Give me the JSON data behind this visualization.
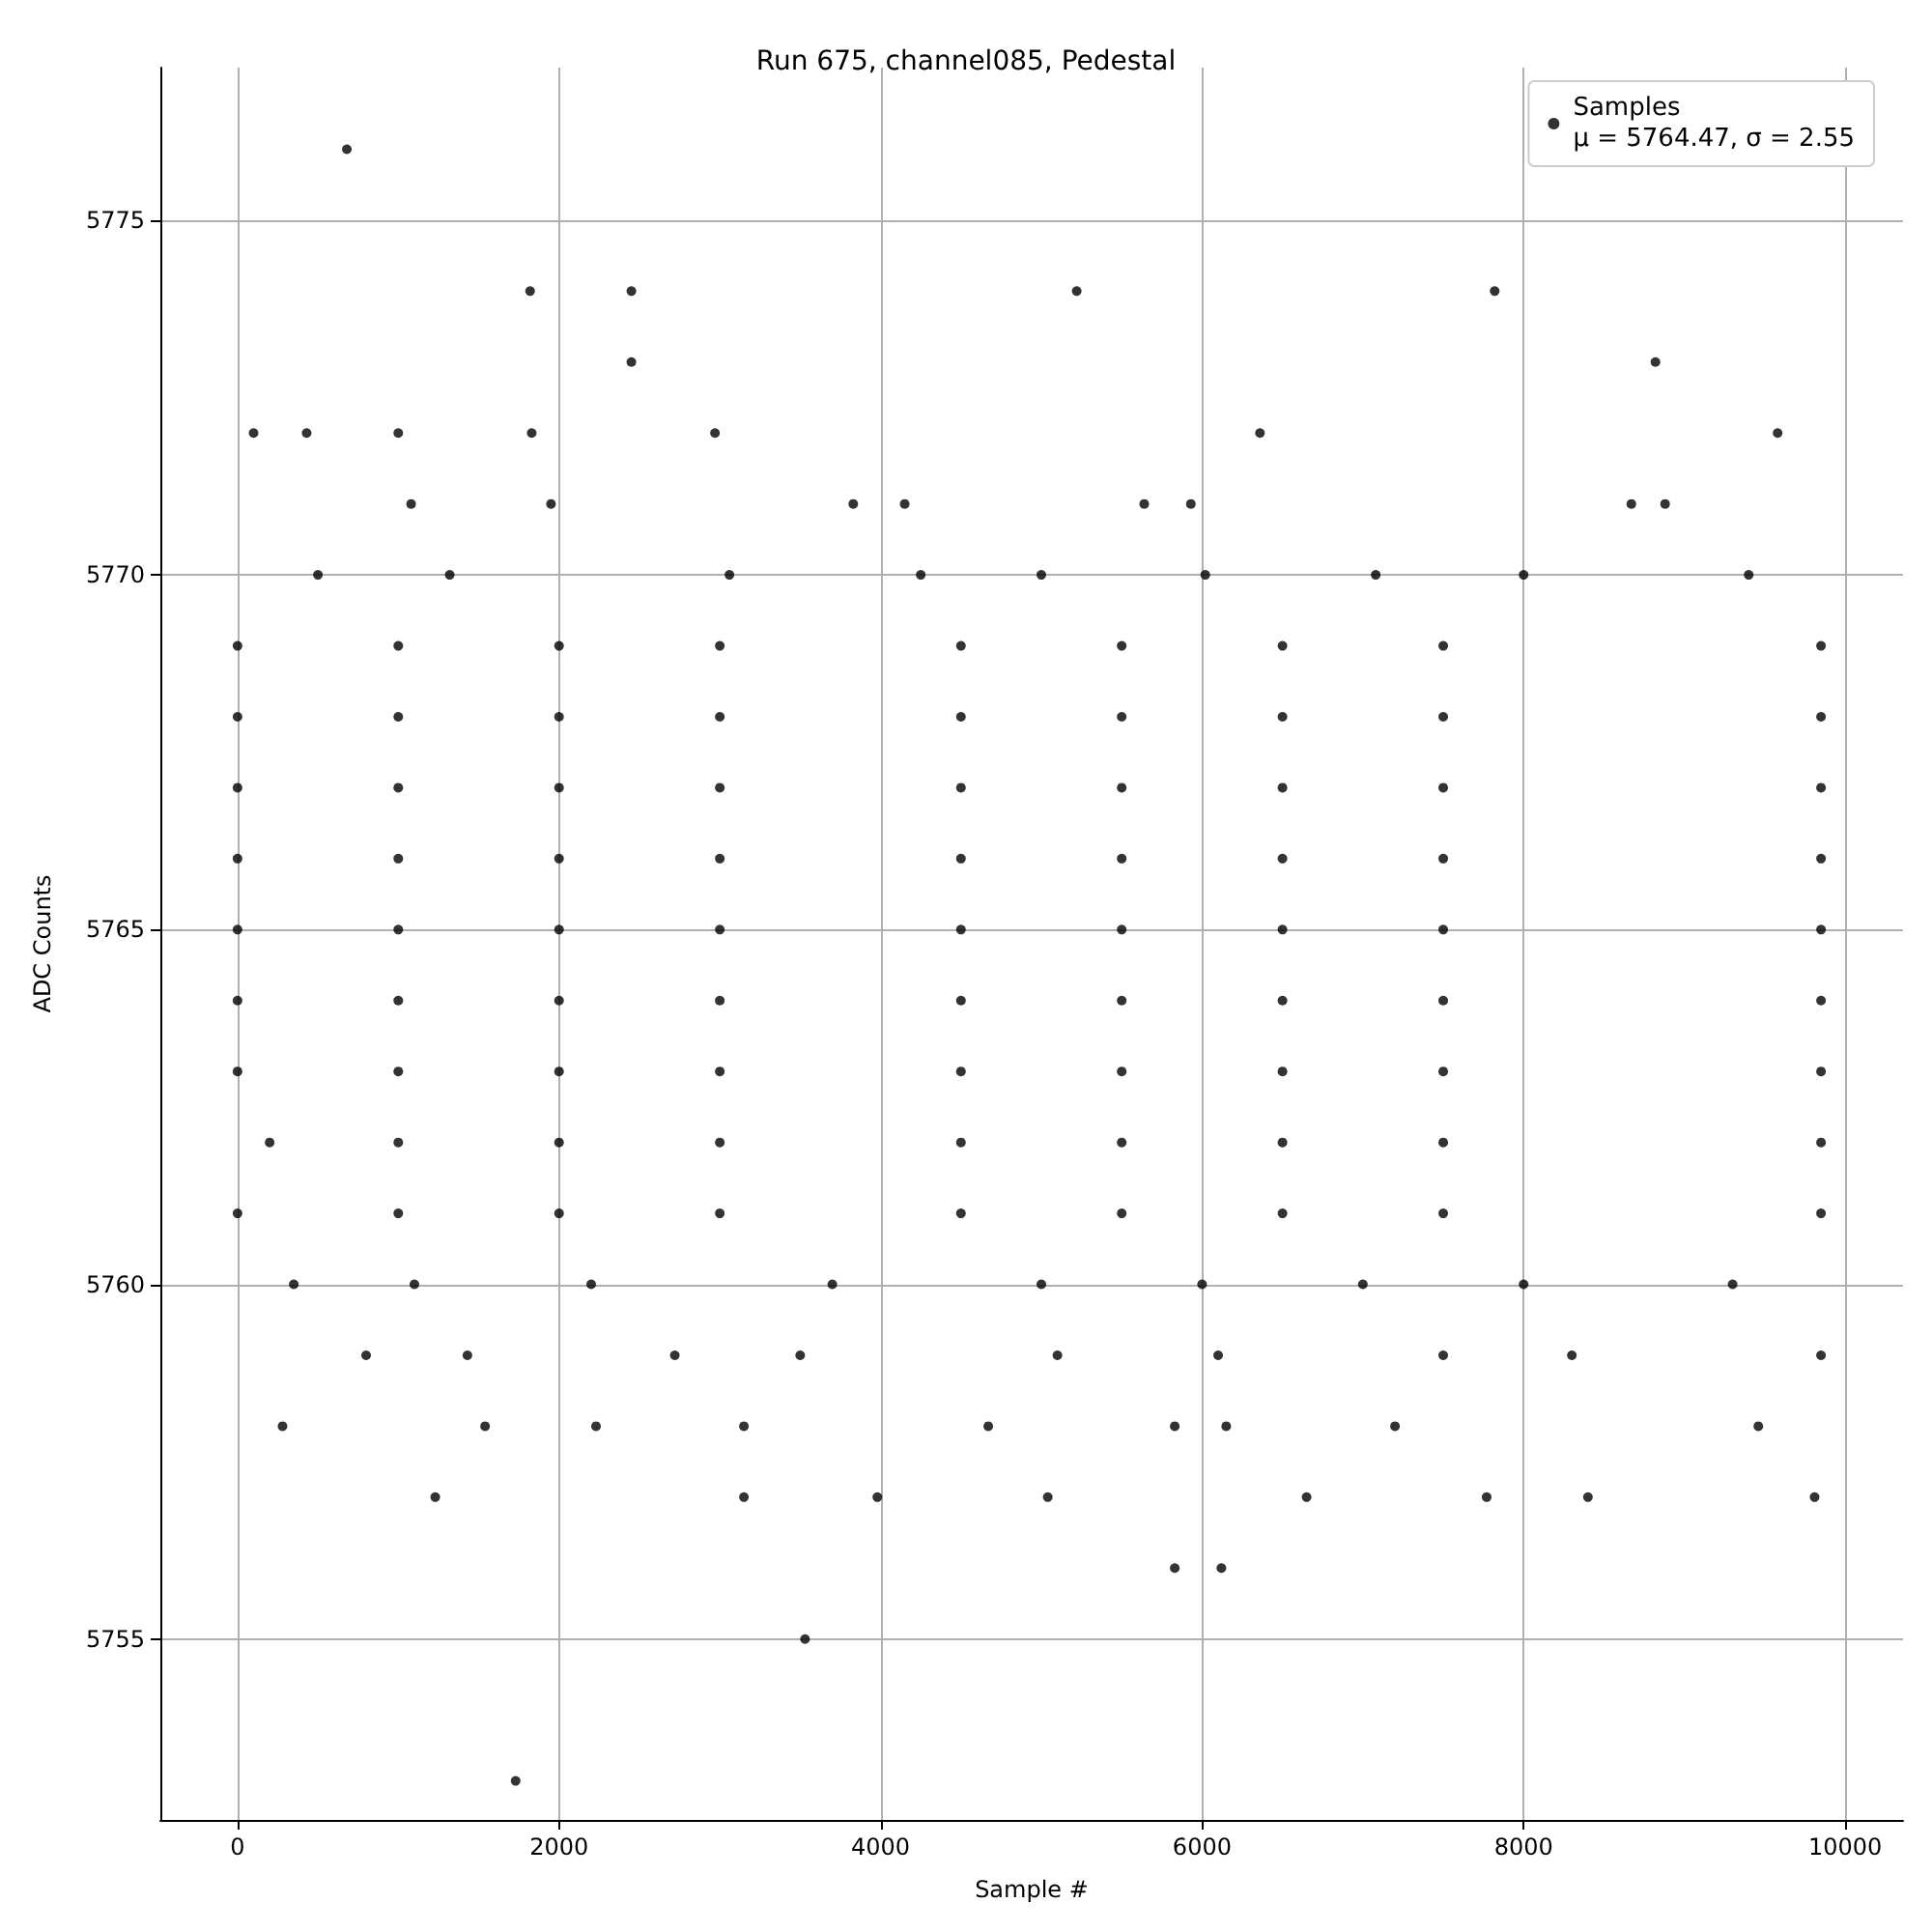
{
  "chart_data": {
    "type": "scatter",
    "title": "Run 675, channel085, Pedestal",
    "xlabel": "Sample #",
    "ylabel": "ADC Counts",
    "annotations": [
      "μ = 5764.47, σ = 2.55"
    ],
    "series": [
      {
        "name": "Samples",
        "color": "#000000",
        "x": [
          0,
          1000,
          2000,
          3000,
          4500,
          5500,
          6500,
          7500,
          9850,
          0,
          1000,
          2000,
          3000,
          4500,
          5500,
          6500,
          7500,
          9850,
          0,
          1000,
          2000,
          3000,
          4500,
          5500,
          6500,
          7500,
          9850,
          0,
          1000,
          2000,
          3000,
          4500,
          5500,
          6500,
          7500,
          9850,
          0,
          1000,
          2000,
          3000,
          4500,
          5500,
          6500,
          7500,
          9850,
          0,
          1000,
          2000,
          3000,
          4500,
          5500,
          6500,
          7500,
          9850,
          0,
          1000,
          2000,
          3000,
          4500,
          5500,
          6500,
          7500,
          9850,
          200,
          1000,
          2000,
          3000,
          4500,
          5500,
          6500,
          7500,
          9850,
          0,
          1000,
          2000,
          3000,
          4500,
          5500,
          6500,
          7500,
          9850,
          680,
          1820,
          2450,
          5220,
          7820,
          2450,
          8820,
          100,
          430,
          1000,
          1830,
          2970,
          6360,
          9580,
          1080,
          1950,
          3830,
          4150,
          5640,
          5930,
          8670,
          8880,
          500,
          1320,
          3060,
          4250,
          5000,
          6020,
          7080,
          8000,
          9400,
          350,
          1100,
          2200,
          3700,
          5000,
          6000,
          7000,
          8000,
          9300,
          800,
          1430,
          2720,
          3500,
          5100,
          6100,
          7500,
          8300,
          9850,
          280,
          1540,
          2230,
          3150,
          4670,
          5830,
          6150,
          7200,
          9460,
          1230,
          3150,
          3980,
          5040,
          6650,
          7770,
          8400,
          9810,
          5830,
          6120,
          3530,
          1730
        ],
        "values": [
          5769,
          5769,
          5769,
          5769,
          5769,
          5769,
          5769,
          5769,
          5769,
          5768,
          5768,
          5768,
          5768,
          5768,
          5768,
          5768,
          5768,
          5768,
          5767,
          5767,
          5767,
          5767,
          5767,
          5767,
          5767,
          5767,
          5767,
          5766,
          5766,
          5766,
          5766,
          5766,
          5766,
          5766,
          5766,
          5766,
          5765,
          5765,
          5765,
          5765,
          5765,
          5765,
          5765,
          5765,
          5765,
          5764,
          5764,
          5764,
          5764,
          5764,
          5764,
          5764,
          5764,
          5764,
          5763,
          5763,
          5763,
          5763,
          5763,
          5763,
          5763,
          5763,
          5763,
          5762,
          5762,
          5762,
          5762,
          5762,
          5762,
          5762,
          5762,
          5762,
          5761,
          5761,
          5761,
          5761,
          5761,
          5761,
          5761,
          5761,
          5761,
          5776,
          5774,
          5774,
          5774,
          5774,
          5773,
          5773,
          5772,
          5772,
          5772,
          5772,
          5772,
          5772,
          5772,
          5771,
          5771,
          5771,
          5771,
          5771,
          5771,
          5771,
          5771,
          5770,
          5770,
          5770,
          5770,
          5770,
          5770,
          5770,
          5770,
          5770,
          5760,
          5760,
          5760,
          5760,
          5760,
          5760,
          5760,
          5760,
          5760,
          5759,
          5759,
          5759,
          5759,
          5759,
          5759,
          5759,
          5759,
          5759,
          5758,
          5758,
          5758,
          5758,
          5758,
          5758,
          5758,
          5758,
          5758,
          5757,
          5757,
          5757,
          5757,
          5757,
          5757,
          5757,
          5757,
          5756,
          5756,
          5755,
          5753
        ]
      }
    ],
    "xlim": [
      -480,
      10360
    ],
    "xticks": [
      0,
      2000,
      4000,
      6000,
      8000,
      10000
    ],
    "ylim": [
      5752.45,
      5777.15
    ],
    "yticks": [
      5755,
      5760,
      5765,
      5770,
      5775
    ],
    "grid": true,
    "legend": "top right",
    "marker": "circle"
  }
}
